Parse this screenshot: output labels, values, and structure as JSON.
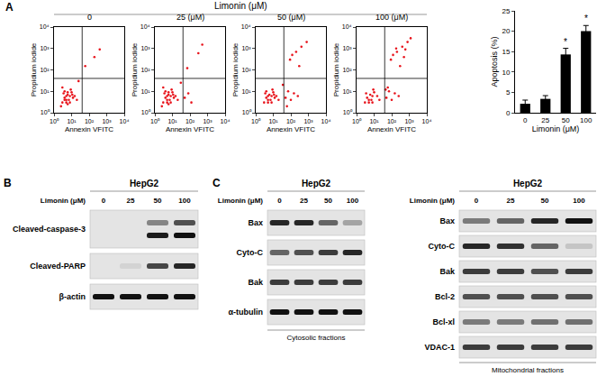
{
  "chart_data": [
    {
      "type": "scatter",
      "title": "0",
      "x_label": "Annexin VFITC",
      "y_label": "Propidium iodide",
      "log": true,
      "grid": false,
      "xlim": [
        1,
        10000
      ],
      "ylim": [
        1,
        10000
      ],
      "xticks": [
        {
          "value": 1,
          "label": "10⁰"
        },
        {
          "value": 10,
          "label": "10¹"
        },
        {
          "value": 100,
          "label": "10²"
        },
        {
          "value": 1000,
          "label": "10³"
        },
        {
          "value": 10000,
          "label": "10⁴"
        }
      ],
      "yticks": [
        {
          "value": 1,
          "label": "10⁰"
        },
        {
          "value": 10,
          "label": "10¹"
        },
        {
          "value": 100,
          "label": "10²"
        },
        {
          "value": 1000,
          "label": "10³"
        },
        {
          "value": 10000,
          "label": "10⁴"
        }
      ],
      "gates": {
        "x": 40,
        "y": 40
      },
      "color": "#e8141c",
      "marker": "circle",
      "x": [
        3,
        4,
        5,
        6,
        8,
        10,
        12,
        2.5,
        3.5,
        5,
        7,
        9,
        4,
        6,
        15,
        20,
        3,
        5,
        8,
        11,
        6,
        4,
        25,
        60,
        200,
        400
      ],
      "values": [
        3,
        5,
        4,
        7,
        6,
        9,
        5,
        2,
        8,
        3,
        4,
        12,
        10,
        2.5,
        6,
        4,
        15,
        6,
        3,
        7,
        9,
        4,
        30,
        150,
        400,
        900
      ]
    },
    {
      "type": "scatter",
      "title": "25 (μM)",
      "x_label": "Annexin VFITC",
      "y_label": "Propidium iodide",
      "log": true,
      "grid": false,
      "xlim": [
        1,
        10000
      ],
      "ylim": [
        1,
        10000
      ],
      "xticks": [
        {
          "value": 1,
          "label": "10⁰"
        },
        {
          "value": 10,
          "label": "10¹"
        },
        {
          "value": 100,
          "label": "10²"
        },
        {
          "value": 1000,
          "label": "10³"
        },
        {
          "value": 10000,
          "label": "10⁴"
        }
      ],
      "yticks": [
        {
          "value": 1,
          "label": "10⁰"
        },
        {
          "value": 10,
          "label": "10¹"
        },
        {
          "value": 100,
          "label": "10²"
        },
        {
          "value": 1000,
          "label": "10³"
        },
        {
          "value": 10000,
          "label": "10⁴"
        }
      ],
      "gates": {
        "x": 40,
        "y": 40
      },
      "color": "#e8141c",
      "marker": "circle",
      "x": [
        3,
        4,
        5,
        6,
        8,
        10,
        12,
        2.5,
        3.5,
        5,
        7,
        9,
        4,
        6,
        15,
        20,
        3,
        5,
        8,
        11,
        6,
        50,
        80,
        120,
        70,
        300,
        500,
        30
      ],
      "values": [
        3,
        5,
        4,
        7,
        6,
        9,
        5,
        2,
        8,
        3,
        4,
        12,
        10,
        2.5,
        6,
        4,
        15,
        6,
        3,
        7,
        9,
        5,
        8,
        3,
        120,
        600,
        1500,
        25
      ]
    },
    {
      "type": "scatter",
      "title": "50 (μM)",
      "x_label": "Annexin VFITC",
      "y_label": "Propidium iodide",
      "log": true,
      "grid": false,
      "xlim": [
        1,
        10000
      ],
      "ylim": [
        1,
        10000
      ],
      "xticks": [
        {
          "value": 1,
          "label": "10⁰"
        },
        {
          "value": 10,
          "label": "10¹"
        },
        {
          "value": 100,
          "label": "10²"
        },
        {
          "value": 1000,
          "label": "10³"
        },
        {
          "value": 10000,
          "label": "10⁴"
        }
      ],
      "yticks": [
        {
          "value": 1,
          "label": "10⁰"
        },
        {
          "value": 10,
          "label": "10¹"
        },
        {
          "value": 100,
          "label": "10²"
        },
        {
          "value": 1000,
          "label": "10³"
        },
        {
          "value": 10000,
          "label": "10⁴"
        }
      ],
      "gates": {
        "x": 40,
        "y": 40
      },
      "color": "#e8141c",
      "marker": "circle",
      "x": [
        3,
        4,
        5,
        6,
        8,
        10,
        12,
        3.5,
        5,
        7,
        9,
        4,
        15,
        20,
        5,
        8,
        11,
        50,
        70,
        100,
        150,
        250,
        90,
        200,
        400,
        800,
        300,
        60,
        120,
        35
      ],
      "values": [
        3,
        5,
        4,
        7,
        6,
        9,
        5,
        8,
        3,
        4,
        12,
        10,
        6,
        4,
        6,
        3,
        7,
        5,
        10,
        4,
        8,
        6,
        300,
        700,
        1200,
        2000,
        150,
        2,
        500,
        20
      ]
    },
    {
      "type": "scatter",
      "title": "100 (μM)",
      "x_label": "Annexin VFITC",
      "y_label": "Propidium iodide",
      "log": true,
      "grid": false,
      "xlim": [
        1,
        10000
      ],
      "ylim": [
        1,
        10000
      ],
      "xticks": [
        {
          "value": 1,
          "label": "10⁰"
        },
        {
          "value": 10,
          "label": "10¹"
        },
        {
          "value": 100,
          "label": "10²"
        },
        {
          "value": 1000,
          "label": "10³"
        },
        {
          "value": 10000,
          "label": "10⁴"
        }
      ],
      "yticks": [
        {
          "value": 1,
          "label": "10⁰"
        },
        {
          "value": 10,
          "label": "10¹"
        },
        {
          "value": 100,
          "label": "10²"
        },
        {
          "value": 1000,
          "label": "10³"
        },
        {
          "value": 10000,
          "label": "10⁴"
        }
      ],
      "gates": {
        "x": 40,
        "y": 40
      },
      "color": "#e8141c",
      "marker": "circle",
      "x": [
        3,
        4,
        5,
        6,
        8,
        10,
        3.5,
        5,
        7,
        9,
        15,
        20,
        8,
        50,
        70,
        100,
        150,
        250,
        90,
        200,
        400,
        800,
        300,
        600,
        1200,
        120,
        500,
        60,
        180,
        45
      ],
      "values": [
        3,
        5,
        4,
        7,
        6,
        9,
        8,
        3,
        4,
        12,
        6,
        4,
        3,
        5,
        10,
        4,
        8,
        6,
        300,
        700,
        1200,
        2000,
        150,
        900,
        3000,
        500,
        400,
        15,
        1000,
        12
      ]
    },
    {
      "type": "bar",
      "x_label": "Limonin (μM)",
      "y_label": "Apoptosis (%)",
      "grid": false,
      "categories": [
        "0",
        "25",
        "50",
        "100"
      ],
      "values": [
        2.2,
        3.4,
        14.3,
        20
      ],
      "errors": [
        0.9,
        0.8,
        1.5,
        1.4
      ],
      "color": "#000000",
      "ylim": [
        0,
        25
      ],
      "yticks": [
        0,
        5,
        10,
        15,
        20,
        25
      ],
      "annotations": [
        {
          "category": "50",
          "text": "*"
        },
        {
          "category": "100",
          "text": "*"
        }
      ]
    }
  ],
  "figure": {
    "panel_a": {
      "label": "A",
      "header": "Limonin (μM)"
    },
    "blots": [
      {
        "label": "B",
        "title": "HepG2",
        "header": "Limonin (μM)",
        "lanes": [
          "0",
          "25",
          "50",
          "100"
        ],
        "rows": [
          {
            "name": "Cleaved-caspase-3",
            "bands": [
              [
                0,
                0,
                0.45,
                0.7
              ],
              [
                0,
                0,
                0.95,
                1
              ]
            ]
          },
          {
            "name": "Cleaved-PARP",
            "bands": [
              [
                0,
                0.08,
                0.75,
                0.9
              ]
            ]
          },
          {
            "name": "β-actin",
            "bands": [
              [
                1,
                1,
                1,
                1
              ]
            ]
          }
        ]
      },
      {
        "label": "C",
        "title": "HepG2",
        "header": "Limonin (μM)",
        "lanes": [
          "0",
          "25",
          "50",
          "100"
        ],
        "caption": "Cytosolic fractions",
        "rows": [
          {
            "name": "Bax",
            "bands": [
              [
                0.9,
                0.9,
                0.6,
                0.3
              ]
            ]
          },
          {
            "name": "Cyto-C",
            "bands": [
              [
                0.6,
                0.7,
                0.8,
                0.9
              ]
            ]
          },
          {
            "name": "Bak",
            "bands": [
              [
                0.8,
                0.8,
                0.8,
                0.8
              ]
            ]
          },
          {
            "name": "α-tubulin",
            "bands": [
              [
                1,
                1,
                1,
                1
              ]
            ]
          }
        ]
      },
      {
        "title": "HepG2",
        "header": "Limonin (μM)",
        "lanes": [
          "0",
          "25",
          "50",
          "100"
        ],
        "caption": "Mitochondrial fractions",
        "rows": [
          {
            "name": "Bax",
            "bands": [
              [
                0.5,
                0.6,
                0.9,
                1
              ]
            ]
          },
          {
            "name": "Cyto-C",
            "bands": [
              [
                0.9,
                0.85,
                0.6,
                0.15
              ]
            ]
          },
          {
            "name": "Bak",
            "bands": [
              [
                0.8,
                0.8,
                0.7,
                0.8
              ]
            ]
          },
          {
            "name": "Bcl-2",
            "bands": [
              [
                0.7,
                0.7,
                0.7,
                0.7
              ]
            ]
          },
          {
            "name": "Bcl-xl",
            "bands": [
              [
                0.5,
                0.5,
                0.55,
                0.55
              ]
            ]
          },
          {
            "name": "VDAC-1",
            "bands": [
              [
                0.8,
                0.8,
                0.8,
                0.8
              ]
            ]
          }
        ]
      }
    ]
  }
}
